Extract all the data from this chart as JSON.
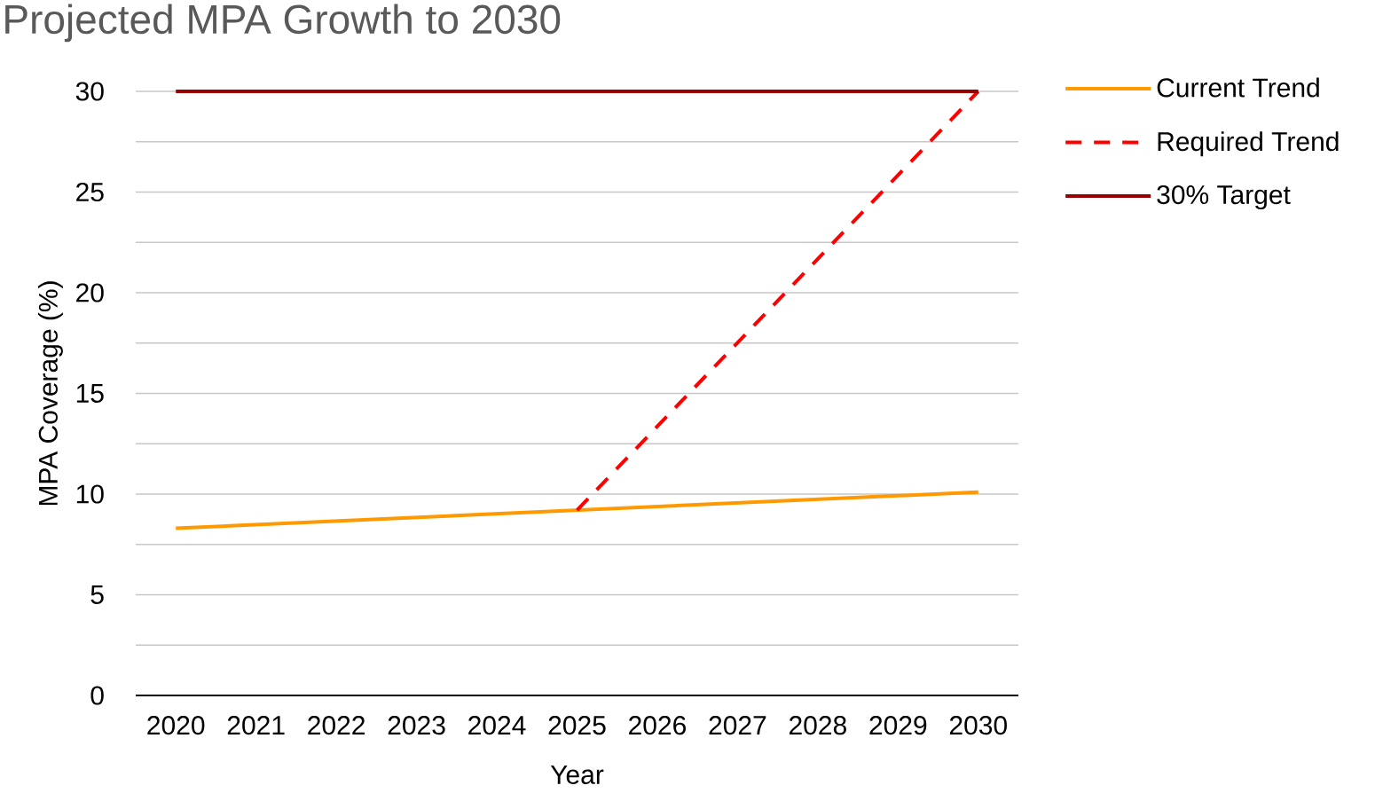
{
  "chart_data": {
    "type": "line",
    "title": "Projected MPA Growth to 2030",
    "xlabel": "Year",
    "ylabel": "MPA Coverage (%)",
    "xlim": [
      2019.5,
      2030.5
    ],
    "xticks": [
      2020,
      2021,
      2022,
      2023,
      2024,
      2025,
      2026,
      2027,
      2028,
      2029,
      2030
    ],
    "ylim": [
      0,
      30
    ],
    "yticks": [
      0,
      {
        "value": 2.5,
        "label": null
      },
      5,
      {
        "value": 7.5,
        "label": null
      },
      10,
      {
        "value": 12.5,
        "label": null
      },
      15,
      {
        "value": 17.5,
        "label": null
      },
      20,
      {
        "value": 22.5,
        "label": null
      },
      25,
      {
        "value": 27.5,
        "label": null
      },
      30
    ],
    "grid": "y",
    "legend": "right",
    "series": [
      {
        "name": "Current Trend",
        "color": "#ff9900",
        "line_style": "solid",
        "x": [
          2020,
          2025,
          2030
        ],
        "values": [
          8.3,
          9.2,
          10.1
        ]
      },
      {
        "name": "Required Trend",
        "color": "#ff0000",
        "line_style": "dashed",
        "x": [
          2025,
          2030
        ],
        "values": [
          9.2,
          30
        ]
      },
      {
        "name": "30% Target",
        "color": "#990000",
        "line_style": "solid",
        "x": [
          2020,
          2030
        ],
        "values": [
          30,
          30
        ]
      }
    ]
  }
}
